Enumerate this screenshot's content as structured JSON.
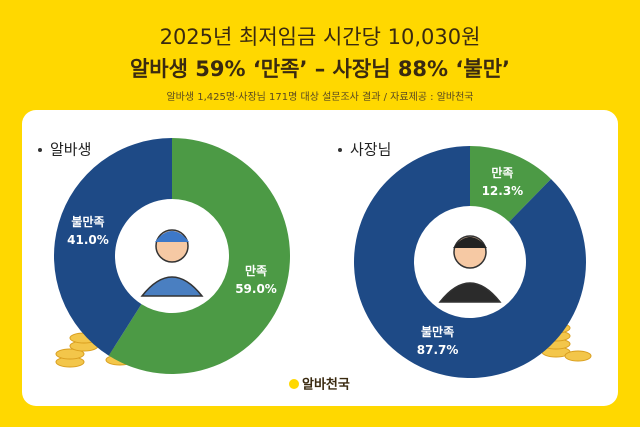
{
  "header": {
    "title": "2025년 최저임금 시간당 10,030원",
    "headline": "알바생 59% ‘만족’ – 사장님 88% ‘불만’",
    "note": "알바생 1,425명·사장님 171명 대상 설문조사 결과 / 자료제공 : 알바천국"
  },
  "footer": {
    "logo": "알바천국"
  },
  "chart_data": [
    {
      "type": "pie",
      "title": "알바생",
      "categories": [
        "만족",
        "불만족"
      ],
      "values": [
        59.0,
        41.0
      ],
      "value_labels": [
        "59.0%",
        "41.0%"
      ],
      "colors": [
        "#4c9a45",
        "#1e4a86"
      ]
    },
    {
      "type": "pie",
      "title": "사장님",
      "categories": [
        "만족",
        "불만족"
      ],
      "values": [
        12.3,
        87.7
      ],
      "value_labels": [
        "12.3%",
        "87.7%"
      ],
      "colors": [
        "#4c9a45",
        "#1e4a86"
      ]
    }
  ]
}
